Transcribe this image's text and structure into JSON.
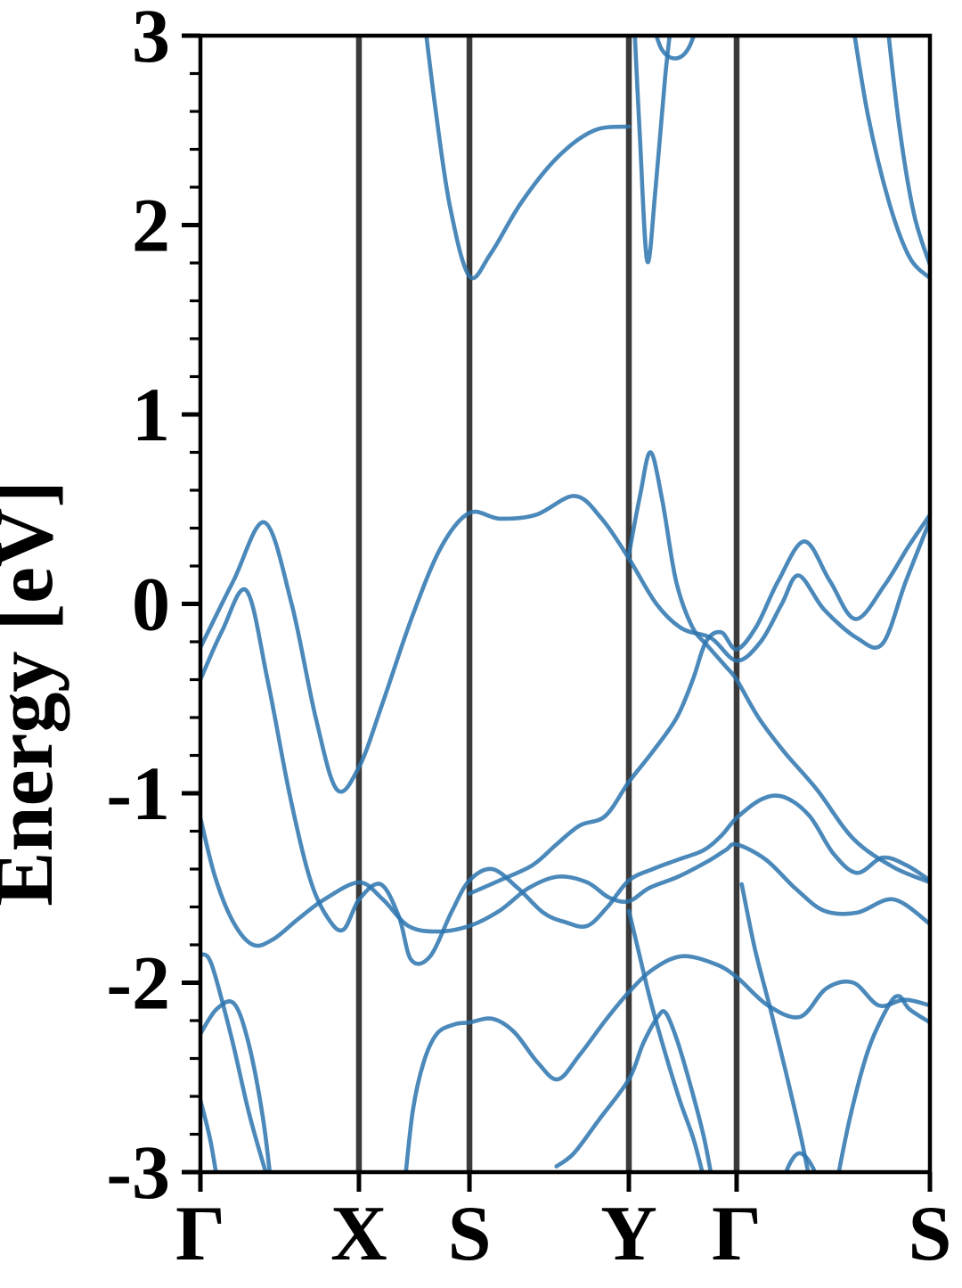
{
  "figure": {
    "kind": "electronic band structure plot",
    "background": "#ffffff"
  },
  "chart_data": {
    "type": "line",
    "title": "",
    "ylabel": "Energy [eV]",
    "ylim": [
      -3,
      3
    ],
    "yticks": [
      3,
      2,
      1,
      0,
      -1,
      -2,
      -3
    ],
    "y_minor_step": 0.2,
    "grid": false,
    "legend": "none",
    "kpoint_labels": [
      "Γ",
      "X",
      "S",
      "Y",
      "Γ",
      "S"
    ],
    "kpoint_fractions": [
      0,
      0.2173,
      0.3688,
      0.5873,
      0.735,
      1.0
    ],
    "band_color": "#2d76b0",
    "band_opacity": 0.86,
    "band_width": 4.6,
    "kline_color": "#3a3a3a",
    "kline_width": 6.5,
    "axis_color": "#000000",
    "bands": [
      {
        "name": "conduction-1",
        "points": [
          [
            0.306,
            3.12
          ],
          [
            0.322,
            2.62
          ],
          [
            0.342,
            2.1
          ],
          [
            0.3688,
            1.73
          ],
          [
            0.398,
            1.85
          ],
          [
            0.44,
            2.12
          ],
          [
            0.49,
            2.36
          ],
          [
            0.54,
            2.5
          ],
          [
            0.5873,
            2.52
          ]
        ]
      },
      {
        "name": "conduction-2-valley-YG",
        "points": [
          [
            0.594,
            3.12
          ],
          [
            0.602,
            2.5
          ],
          [
            0.6125,
            1.81
          ],
          [
            0.624,
            2.2
          ],
          [
            0.637,
            2.78
          ],
          [
            0.647,
            3.12
          ]
        ]
      },
      {
        "name": "conduction-3-topdip",
        "points": [
          [
            0.616,
            3.12
          ],
          [
            0.632,
            2.93
          ],
          [
            0.652,
            2.88
          ],
          [
            0.67,
            2.94
          ],
          [
            0.686,
            3.12
          ]
        ]
      },
      {
        "name": "conduction-4",
        "points": [
          [
            0.892,
            3.12
          ],
          [
            0.915,
            2.58
          ],
          [
            0.944,
            2.12
          ],
          [
            0.972,
            1.83
          ],
          [
            1.0,
            1.72
          ]
        ]
      },
      {
        "name": "conduction-5",
        "points": [
          [
            0.94,
            3.12
          ],
          [
            0.958,
            2.52
          ],
          [
            0.978,
            2.06
          ],
          [
            1.0,
            1.79
          ]
        ]
      },
      {
        "name": "valence-top",
        "points": [
          [
            0,
            -0.23
          ],
          [
            0.045,
            0.12
          ],
          [
            0.088,
            0.43
          ],
          [
            0.125,
            0.0
          ],
          [
            0.158,
            -0.6
          ],
          [
            0.187,
            -0.98
          ],
          [
            0.2176,
            -0.86
          ],
          [
            0.25,
            -0.52
          ],
          [
            0.29,
            -0.07
          ],
          [
            0.33,
            0.3
          ],
          [
            0.3688,
            0.48
          ],
          [
            0.41,
            0.45
          ],
          [
            0.46,
            0.47
          ],
          [
            0.513,
            0.57
          ],
          [
            0.55,
            0.45
          ],
          [
            0.5873,
            0.24
          ],
          [
            0.625,
            0.0
          ],
          [
            0.66,
            -0.13
          ],
          [
            0.7,
            -0.18
          ],
          [
            0.735,
            -0.3
          ],
          [
            0.768,
            -0.2
          ],
          [
            0.797,
            0.0
          ],
          [
            0.82,
            0.15
          ],
          [
            0.855,
            -0.03
          ],
          [
            0.9,
            -0.18
          ],
          [
            0.935,
            -0.21
          ],
          [
            0.967,
            0.12
          ],
          [
            1.0,
            0.44
          ]
        ]
      },
      {
        "name": "valence-Y-peak",
        "points": [
          [
            0.5873,
            0.26
          ],
          [
            0.603,
            0.58
          ],
          [
            0.617,
            0.8
          ],
          [
            0.633,
            0.55
          ],
          [
            0.652,
            0.12
          ],
          [
            0.674,
            -0.12
          ],
          [
            0.695,
            -0.22
          ],
          [
            0.72,
            -0.33
          ],
          [
            0.735,
            -0.4
          ],
          [
            0.765,
            -0.6
          ],
          [
            0.8,
            -0.78
          ],
          [
            0.845,
            -0.98
          ],
          [
            0.895,
            -1.24
          ],
          [
            0.95,
            -1.39
          ],
          [
            1.0,
            -1.47
          ]
        ]
      },
      {
        "name": "valence-rising",
        "points": [
          [
            0.3688,
            -1.53
          ],
          [
            0.41,
            -1.46
          ],
          [
            0.455,
            -1.38
          ],
          [
            0.488,
            -1.27
          ],
          [
            0.52,
            -1.17
          ],
          [
            0.555,
            -1.12
          ],
          [
            0.5873,
            -0.94
          ],
          [
            0.62,
            -0.78
          ],
          [
            0.653,
            -0.6
          ],
          [
            0.675,
            -0.4
          ],
          [
            0.693,
            -0.2
          ],
          [
            0.714,
            -0.15
          ],
          [
            0.735,
            -0.24
          ],
          [
            0.762,
            -0.12
          ],
          [
            0.792,
            0.12
          ],
          [
            0.828,
            0.33
          ],
          [
            0.863,
            0.12
          ],
          [
            0.898,
            -0.08
          ],
          [
            0.938,
            0.1
          ],
          [
            0.97,
            0.3
          ],
          [
            1.0,
            0.47
          ]
        ]
      },
      {
        "name": "valence-braid-a",
        "points": [
          [
            0,
            -0.4
          ],
          [
            0.03,
            -0.14
          ],
          [
            0.063,
            0.07
          ],
          [
            0.092,
            -0.4
          ],
          [
            0.122,
            -1.0
          ],
          [
            0.15,
            -1.45
          ],
          [
            0.175,
            -1.66
          ],
          [
            0.196,
            -1.72
          ],
          [
            0.2176,
            -1.56
          ],
          [
            0.247,
            -1.48
          ],
          [
            0.272,
            -1.65
          ],
          [
            0.289,
            -1.88
          ],
          [
            0.315,
            -1.86
          ],
          [
            0.345,
            -1.62
          ],
          [
            0.3688,
            -1.46
          ],
          [
            0.4,
            -1.4
          ],
          [
            0.435,
            -1.5
          ],
          [
            0.47,
            -1.63
          ],
          [
            0.5,
            -1.68
          ],
          [
            0.53,
            -1.7
          ],
          [
            0.558,
            -1.6
          ],
          [
            0.5873,
            -1.46
          ],
          [
            0.62,
            -1.4
          ],
          [
            0.655,
            -1.35
          ],
          [
            0.69,
            -1.3
          ],
          [
            0.715,
            -1.22
          ],
          [
            0.735,
            -1.13
          ],
          [
            0.77,
            -1.03
          ],
          [
            0.8,
            -1.02
          ],
          [
            0.835,
            -1.12
          ],
          [
            0.868,
            -1.32
          ],
          [
            0.9,
            -1.42
          ],
          [
            0.935,
            -1.34
          ],
          [
            0.968,
            -1.38
          ],
          [
            1.0,
            -1.46
          ]
        ]
      },
      {
        "name": "valence-braid-b",
        "points": [
          [
            0,
            -1.13
          ],
          [
            0.02,
            -1.44
          ],
          [
            0.045,
            -1.68
          ],
          [
            0.072,
            -1.8
          ],
          [
            0.1,
            -1.77
          ],
          [
            0.135,
            -1.66
          ],
          [
            0.17,
            -1.56
          ],
          [
            0.2176,
            -1.47
          ],
          [
            0.25,
            -1.56
          ],
          [
            0.285,
            -1.7
          ],
          [
            0.325,
            -1.73
          ],
          [
            0.3688,
            -1.7
          ],
          [
            0.41,
            -1.62
          ],
          [
            0.45,
            -1.5
          ],
          [
            0.49,
            -1.44
          ],
          [
            0.53,
            -1.47
          ],
          [
            0.56,
            -1.55
          ],
          [
            0.5873,
            -1.57
          ],
          [
            0.615,
            -1.5
          ],
          [
            0.655,
            -1.44
          ],
          [
            0.695,
            -1.36
          ],
          [
            0.72,
            -1.3
          ],
          [
            0.735,
            -1.27
          ],
          [
            0.775,
            -1.35
          ],
          [
            0.815,
            -1.5
          ],
          [
            0.855,
            -1.62
          ],
          [
            0.9,
            -1.63
          ],
          [
            0.95,
            -1.56
          ],
          [
            1.0,
            -1.69
          ]
        ]
      },
      {
        "name": "deep-1",
        "points": [
          [
            0,
            -1.85
          ],
          [
            0.015,
            -1.9
          ],
          [
            0.042,
            -2.28
          ],
          [
            0.066,
            -2.68
          ],
          [
            0.088,
            -2.98
          ],
          [
            0.102,
            -3.14
          ]
        ]
      },
      {
        "name": "deep-2-hump",
        "points": [
          [
            0,
            -2.27
          ],
          [
            0.022,
            -2.14
          ],
          [
            0.046,
            -2.11
          ],
          [
            0.066,
            -2.32
          ],
          [
            0.086,
            -2.72
          ],
          [
            0.099,
            -3.14
          ]
        ]
      },
      {
        "name": "deep-3",
        "points": [
          [
            0,
            -2.62
          ],
          [
            0.014,
            -2.84
          ],
          [
            0.027,
            -3.14
          ]
        ]
      },
      {
        "name": "deep-U-band",
        "points": [
          [
            0.278,
            -3.14
          ],
          [
            0.291,
            -2.68
          ],
          [
            0.306,
            -2.42
          ],
          [
            0.324,
            -2.27
          ],
          [
            0.348,
            -2.22
          ],
          [
            0.3688,
            -2.21
          ],
          [
            0.4,
            -2.19
          ],
          [
            0.43,
            -2.26
          ],
          [
            0.462,
            -2.42
          ],
          [
            0.49,
            -2.51
          ],
          [
            0.52,
            -2.38
          ],
          [
            0.555,
            -2.2
          ],
          [
            0.5873,
            -2.05
          ],
          [
            0.62,
            -1.93
          ],
          [
            0.66,
            -1.86
          ],
          [
            0.705,
            -1.9
          ],
          [
            0.735,
            -1.97
          ],
          [
            0.778,
            -2.12
          ],
          [
            0.822,
            -2.18
          ],
          [
            0.858,
            -2.03
          ],
          [
            0.895,
            -2.0
          ],
          [
            0.93,
            -2.12
          ],
          [
            0.965,
            -2.09
          ],
          [
            1.0,
            -2.12
          ]
        ]
      },
      {
        "name": "deep-YG-descent",
        "points": [
          [
            0.5873,
            -1.62
          ],
          [
            0.601,
            -1.84
          ],
          [
            0.616,
            -2.08
          ],
          [
            0.634,
            -2.33
          ],
          [
            0.657,
            -2.62
          ],
          [
            0.677,
            -2.84
          ],
          [
            0.697,
            -3.14
          ]
        ]
      },
      {
        "name": "deep-YG-cross",
        "points": [
          [
            0.488,
            -2.97
          ],
          [
            0.512,
            -2.9
          ],
          [
            0.547,
            -2.72
          ],
          [
            0.5873,
            -2.51
          ],
          [
            0.607,
            -2.32
          ],
          [
            0.627,
            -2.18
          ],
          [
            0.638,
            -2.16
          ],
          [
            0.654,
            -2.31
          ],
          [
            0.673,
            -2.56
          ],
          [
            0.691,
            -2.83
          ],
          [
            0.706,
            -3.14
          ]
        ]
      },
      {
        "name": "deep-GS-descent",
        "points": [
          [
            0.742,
            -1.48
          ],
          [
            0.76,
            -1.82
          ],
          [
            0.782,
            -2.15
          ],
          [
            0.803,
            -2.48
          ],
          [
            0.824,
            -2.83
          ],
          [
            0.84,
            -3.14
          ]
        ]
      },
      {
        "name": "deep-GS-bump",
        "points": [
          [
            0.792,
            -3.14
          ],
          [
            0.806,
            -2.97
          ],
          [
            0.822,
            -2.9
          ],
          [
            0.84,
            -2.98
          ],
          [
            0.853,
            -3.14
          ]
        ]
      },
      {
        "name": "deep-GS-rise",
        "points": [
          [
            0.868,
            -3.14
          ],
          [
            0.89,
            -2.72
          ],
          [
            0.915,
            -2.36
          ],
          [
            0.942,
            -2.13
          ],
          [
            0.957,
            -2.07
          ],
          [
            0.972,
            -2.14
          ],
          [
            1.0,
            -2.21
          ]
        ]
      }
    ]
  }
}
